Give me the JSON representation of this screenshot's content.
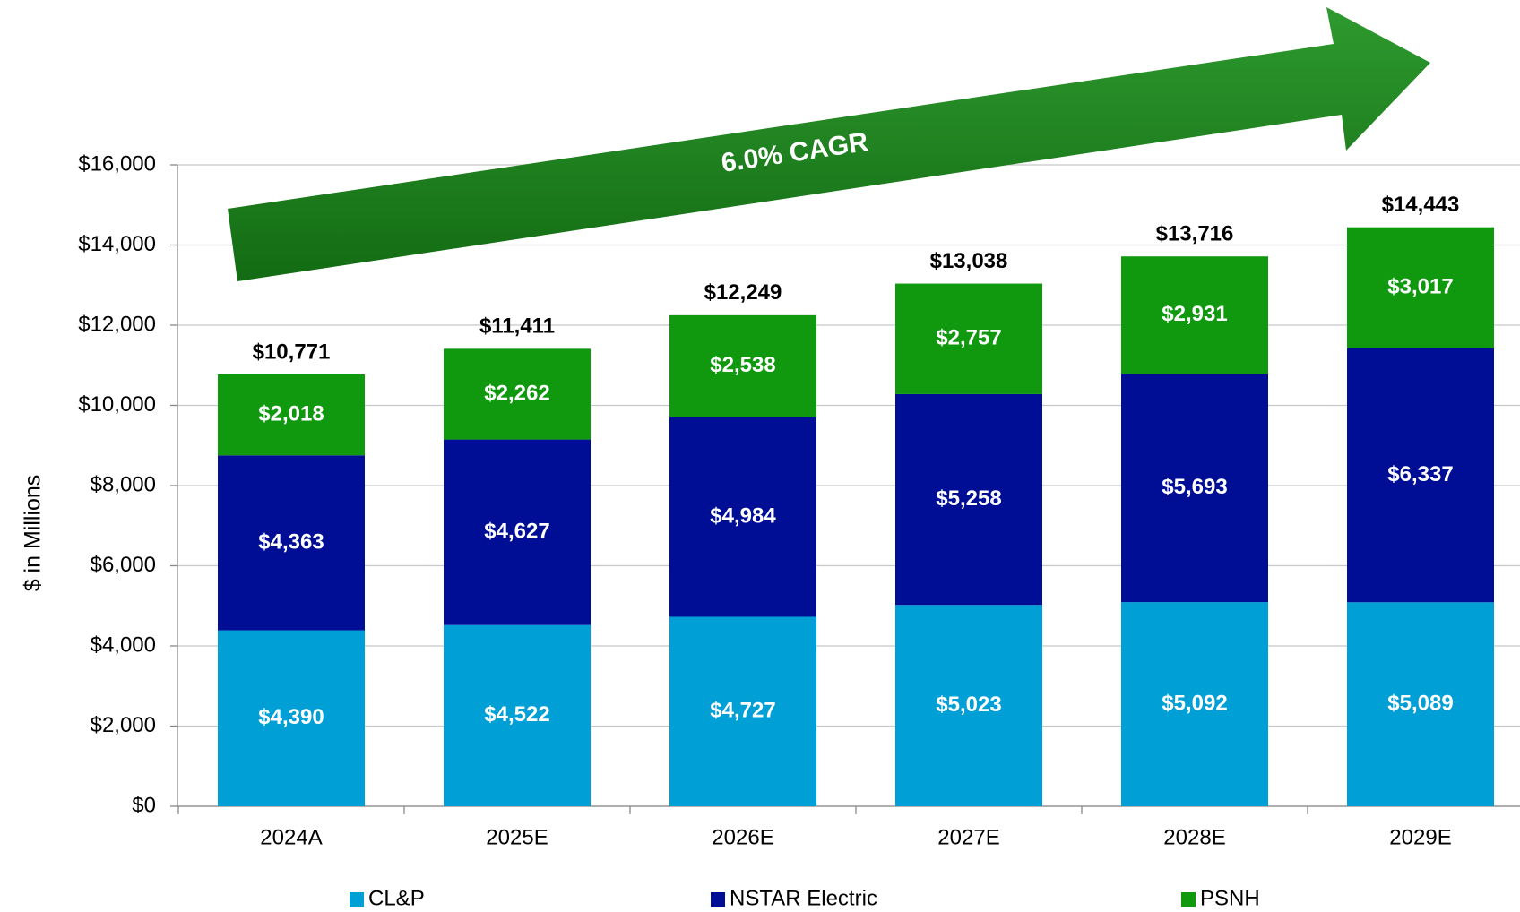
{
  "chart_data": {
    "type": "stacked_bar",
    "y_label": "$ in Millions",
    "annotation": "6.0% CAGR",
    "categories": [
      "2024A",
      "2025E",
      "2026E",
      "2027E",
      "2028E",
      "2029E"
    ],
    "series": [
      {
        "name": "CL&P",
        "color": "#009fd6",
        "values": [
          4390,
          4522,
          4727,
          5023,
          5092,
          5089
        ],
        "value_labels": [
          "$4,390",
          "$4,522",
          "$4,727",
          "$5,023",
          "$5,092",
          "$5,089"
        ]
      },
      {
        "name": "NSTAR Electric",
        "color": "#000e96",
        "values": [
          4363,
          4627,
          4984,
          5258,
          5693,
          6337
        ],
        "value_labels": [
          "$4,363",
          "$4,627",
          "$4,984",
          "$5,258",
          "$5,693",
          "$6,337"
        ]
      },
      {
        "name": "PSNH",
        "color": "#10990f",
        "values": [
          2018,
          2262,
          2538,
          2757,
          2931,
          3017
        ],
        "value_labels": [
          "$2,018",
          "$2,262",
          "$2,538",
          "$2,757",
          "$2,931",
          "$3,017"
        ]
      }
    ],
    "totals": [
      10771,
      11411,
      12249,
      13038,
      13716,
      14443
    ],
    "total_labels": [
      "$10,771",
      "$11,411",
      "$12,249",
      "$13,038",
      "$13,716",
      "$14,443"
    ],
    "ylim": [
      0,
      16000
    ],
    "yticks": [
      {
        "value": 0,
        "label": "$0"
      },
      {
        "value": 2000,
        "label": "$2,000"
      },
      {
        "value": 4000,
        "label": "$4,000"
      },
      {
        "value": 6000,
        "label": "$6,000"
      },
      {
        "value": 8000,
        "label": "$8,000"
      },
      {
        "value": 10000,
        "label": "$10,000"
      },
      {
        "value": 12000,
        "label": "$12,000"
      },
      {
        "value": 14000,
        "label": "$14,000"
      },
      {
        "value": 16000,
        "label": "$16,000"
      }
    ],
    "grid": true,
    "legend": "bottom"
  }
}
